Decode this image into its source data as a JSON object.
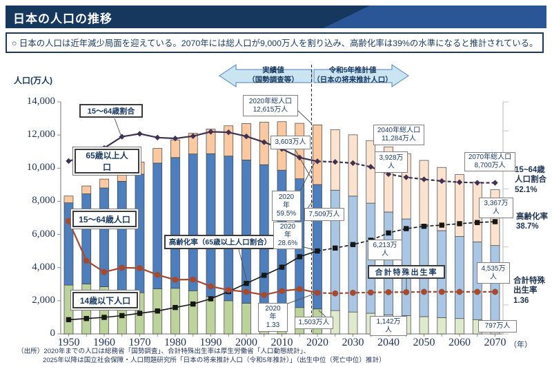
{
  "header": {
    "title": "日本の人口の推移"
  },
  "summary": {
    "text": "○ 日本の人口は近年減少局面を迎えている。2070年には総人口が9,000万人を割り込み、高齢化率は39%の水準になると推計されている。"
  },
  "banners": {
    "actual": "実績値\n（国勢調査等）",
    "projection": "令和5年推計値\n（日本の将来推計人口）"
  },
  "axis": {
    "y_title": "人口(万人)",
    "year_unit": "（年）"
  },
  "series_labels": {
    "ratio1564": "15～64歳割合",
    "pop65": "65歳以上人\n口",
    "pop1564": "15～64歳人口",
    "pop14": "14歳以下人口",
    "aging": "高齢化率（65歳以上人口割合）",
    "fertility": "合計特殊出生率"
  },
  "callouts": {
    "total2020": "2020年総人口\n12,615万人",
    "total2040": "2040年総人口\n11,284万人",
    "total2070": "2070年総人口\n8,700万人",
    "v3603": "3,603万人",
    "v3928": "3,928万\n人",
    "v3367": "3,367万\n人",
    "v7509": "7,509万人",
    "v6213": "6,213万\n人",
    "v4535": "4,535万\n人",
    "v1503": "1,503万人",
    "v1142": "1,142万\n人",
    "v797": "797万人",
    "r2020": "2020\n年\n59.5%",
    "a2020": "2020\n年\n28.6%",
    "f2020": "2020\n年\n1.33"
  },
  "right_labels": {
    "ratio": "15~64歳\n人口割合\n52.1%",
    "aging": "高齢化率\n38.7%",
    "fertility": "合計特殊\n出生率\n1.36"
  },
  "footer": {
    "line1": "（出所）2020年までの人口は総務省「国勢調査」、合計特殊出生率は厚生労働省「人口動態統計」、",
    "line2": "2025年以降は国立社会保障・人口問題研究所「日本の将来推計人口（令和5年推計）」（出生中位（死亡中位）推計）"
  },
  "colors": {
    "navy": "#17375E",
    "bar_under15": "#BCD39B",
    "bar_working": "#4D7EBD",
    "bar_over65": "#FAC9A1",
    "bar_under15_proj": "#DFEACD",
    "bar_working_proj": "#A9C6E5",
    "bar_over65_proj": "#FBE3CF",
    "bar_stroke": "#3f3f3f",
    "line_ratio": "#3F3151",
    "line_aging": "#161616",
    "line_fertility": "#A6492E",
    "banner_fill": "#CBE4F1",
    "banner_border": "#4A7EBD",
    "axis_gray": "#8a8a8a",
    "right_axis_gray": "#c2c2c2"
  },
  "chart_data": {
    "type": "combo: stacked bar (population, 万人) + lines (%, fertility rate)",
    "title": "日本の人口の推移",
    "ylabel_left": "人口(万人)",
    "ylim_left": [
      0,
      14000
    ],
    "projection_start_year": 2025,
    "legend_position": "inline boxed labels",
    "grid": false,
    "x": [
      1950,
      1955,
      1960,
      1965,
      1970,
      1975,
      1980,
      1985,
      1990,
      1995,
      2000,
      2005,
      2010,
      2015,
      2020,
      2025,
      2030,
      2035,
      2040,
      2045,
      2050,
      2055,
      2060,
      2065,
      2070
    ],
    "x_ticks": [
      "1950",
      "1960",
      "1970",
      "1980",
      "1990",
      "2000",
      "2010",
      "2020",
      "2030",
      "2040",
      "2050",
      "2060",
      "2070"
    ],
    "y_ticks": [
      "0",
      "2,000",
      "4,000",
      "6,000",
      "8,000",
      "10,000",
      "12,000",
      "14,000"
    ],
    "series": [
      {
        "name": "14歳以下人口",
        "type": "bar-stack-bottom",
        "unit": "万人",
        "values": [
          2943,
          3012,
          2843,
          2517,
          2482,
          2722,
          2752,
          2603,
          2249,
          2001,
          1847,
          1752,
          1680,
          1589,
          1503,
          1407,
          1321,
          1246,
          1142,
          1103,
          1041,
          983,
          926,
          861,
          797
        ]
      },
      {
        "name": "15～64歳人口",
        "type": "bar-stack-middle",
        "unit": "万人",
        "values": [
          4966,
          5441,
          5964,
          6693,
          7157,
          7585,
          7889,
          8255,
          8623,
          8730,
          8645,
          8458,
          8201,
          7773,
          7509,
          7266,
          6995,
          6644,
          6213,
          5832,
          5540,
          5248,
          4950,
          4695,
          4535
        ]
      },
      {
        "name": "65歳以上人口",
        "type": "bar-stack-top",
        "unit": "万人",
        "values": [
          411,
          475,
          535,
          618,
          733,
          887,
          1065,
          1247,
          1489,
          1826,
          2201,
          2567,
          2925,
          3347,
          3603,
          3653,
          3696,
          3774,
          3928,
          3945,
          3888,
          3813,
          3739,
          3603,
          3367
        ]
      },
      {
        "name": "15～64歳割合",
        "type": "line",
        "unit": "%",
        "marker": "diamond",
        "values": [
          59.6,
          61.2,
          64.1,
          68.0,
          69.0,
          67.7,
          67.4,
          68.2,
          69.7,
          69.5,
          68.1,
          66.1,
          63.8,
          60.8,
          59.5,
          59.3,
          58.9,
          57.6,
          55.1,
          54.0,
          53.3,
          52.7,
          52.3,
          52.1,
          52.1
        ]
      },
      {
        "name": "高齢化率（65歳以上人口割合）",
        "type": "line",
        "unit": "%",
        "marker": "square",
        "values": [
          4.9,
          5.3,
          5.7,
          6.3,
          7.1,
          7.9,
          9.1,
          10.3,
          12.1,
          14.6,
          17.4,
          20.2,
          23.0,
          26.6,
          28.6,
          29.6,
          30.8,
          32.3,
          34.8,
          36.3,
          37.1,
          37.5,
          38.0,
          38.4,
          38.7
        ]
      },
      {
        "name": "合計特殊出生率",
        "type": "line",
        "unit": "rate",
        "marker": "circle",
        "values": [
          3.65,
          2.37,
          2.0,
          2.14,
          2.13,
          1.91,
          1.75,
          1.76,
          1.54,
          1.42,
          1.36,
          1.26,
          1.39,
          1.45,
          1.33,
          1.31,
          1.33,
          1.34,
          1.35,
          1.35,
          1.36,
          1.36,
          1.36,
          1.36,
          1.36
        ]
      }
    ],
    "annotated_values": {
      "total_2020": 12615,
      "total_2040": 11284,
      "total_2070": 8700,
      "over65_2020": 3603,
      "over65_2040": 3928,
      "over65_2070": 3367,
      "working_2020": 7509,
      "working_2040": 6213,
      "working_2070": 4535,
      "under15_2020": 1503,
      "under15_2040": 1142,
      "under15_2070": 797,
      "ratio_2020_pct": 59.5,
      "ratio_2070_pct": 52.1,
      "aging_2020_pct": 28.6,
      "aging_2070_pct": 38.7,
      "fertility_2020": 1.33,
      "fertility_2070": 1.36
    }
  }
}
